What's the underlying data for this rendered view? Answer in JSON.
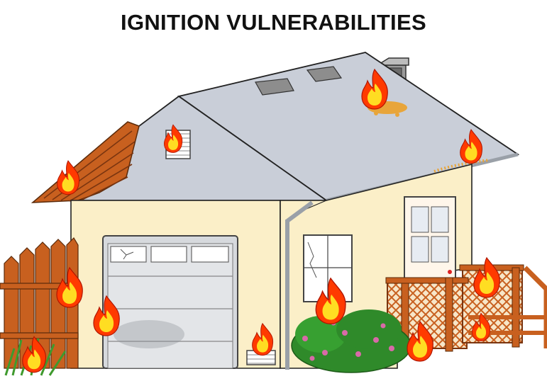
{
  "title": "IGNITION VULNERABILITIES",
  "colors": {
    "roof": "#c9ced8",
    "wall": "#fbefc8",
    "wood": "#c8601f",
    "flame_outer": "#ff3a00",
    "flame_inner": "#ffdd22",
    "ember_debris": "#e8a53a",
    "garage_door": "#d6d9dd",
    "shrub": "#2f8a2a",
    "shrub_flower": "#d86aa8"
  },
  "icons": {
    "flame": "fire-icon",
    "debris": "ember-debris-icon"
  }
}
